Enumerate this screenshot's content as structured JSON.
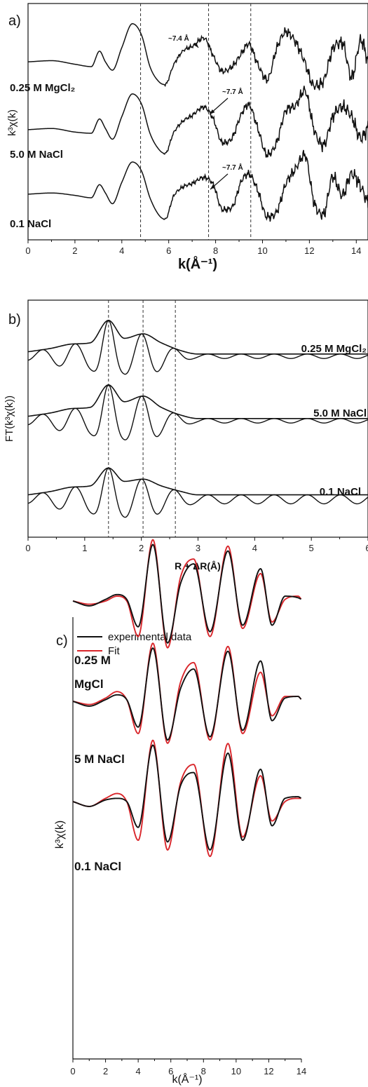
{
  "panels": {
    "a": {
      "letter": "a)"
    },
    "b": {
      "letter": "b)"
    },
    "c": {
      "letter": "c)"
    }
  },
  "chart_data": [
    {
      "panel": "a",
      "type": "line",
      "xlabel": "k(Å⁻¹)",
      "ylabel": "k³χ(k)",
      "xlim": [
        0,
        14.5
      ],
      "xticks": [
        0,
        2,
        4,
        6,
        8,
        10,
        12,
        14
      ],
      "vlines": [
        4.8,
        7.7,
        9.5
      ],
      "series": [
        {
          "name": "0.25 M MgCl₂",
          "x": [
            0,
            1.0,
            2.0,
            2.7,
            3.05,
            3.3,
            3.6,
            4.0,
            4.45,
            4.85,
            5.2,
            5.6,
            5.85,
            6.2,
            6.6,
            7.0,
            7.5,
            7.9,
            8.3,
            8.7,
            9.1,
            9.4,
            9.8,
            10.2,
            10.6,
            11.0,
            11.4,
            11.8,
            12.2,
            12.6,
            13.0,
            13.4,
            13.8,
            14.2,
            14.5
          ],
          "values": [
            0.4,
            0.5,
            0.2,
            0.0,
            1.3,
            0.4,
            -0.3,
            1.6,
            3.6,
            2.6,
            0.0,
            -1.3,
            -1.5,
            0.1,
            1.3,
            1.7,
            2.4,
            0.9,
            -0.4,
            0.0,
            1.1,
            1.9,
            0.2,
            -1.1,
            1.5,
            2.9,
            2.1,
            0.4,
            -1.6,
            -1.2,
            1.5,
            2.0,
            -0.9,
            2.2,
            0.4
          ]
        },
        {
          "name": "5.0 M NaCl",
          "x": [
            0,
            1.0,
            2.0,
            2.7,
            3.05,
            3.3,
            3.6,
            4.0,
            4.45,
            4.85,
            5.2,
            5.6,
            5.85,
            6.2,
            6.6,
            7.0,
            7.5,
            7.9,
            8.3,
            8.7,
            9.1,
            9.4,
            9.8,
            10.2,
            10.6,
            11.0,
            11.4,
            11.8,
            12.2,
            12.6,
            13.0,
            13.4,
            13.8,
            14.2,
            14.5
          ],
          "values": [
            0.3,
            0.4,
            0.1,
            0.0,
            1.2,
            0.4,
            -0.5,
            1.4,
            3.3,
            2.4,
            0.0,
            -1.4,
            -1.7,
            0.0,
            1.0,
            1.5,
            2.2,
            1.2,
            -0.8,
            -0.4,
            1.6,
            2.4,
            0.4,
            -1.8,
            -0.8,
            1.9,
            2.3,
            3.6,
            0.3,
            -1.0,
            1.4,
            2.2,
            1.4,
            -0.4,
            0.5
          ]
        },
        {
          "name": "0.1 NaCl",
          "x": [
            0,
            1.0,
            2.0,
            2.7,
            3.05,
            3.3,
            3.6,
            4.0,
            4.45,
            4.85,
            5.2,
            5.6,
            5.85,
            6.2,
            6.6,
            7.0,
            7.5,
            7.9,
            8.3,
            8.7,
            9.1,
            9.4,
            9.8,
            10.2,
            10.6,
            11.0,
            11.4,
            11.8,
            12.2,
            12.6,
            13.0,
            13.4,
            13.8,
            14.2,
            14.5
          ],
          "values": [
            0.3,
            0.4,
            0.2,
            0.0,
            1.1,
            0.4,
            -0.5,
            1.3,
            3.0,
            2.2,
            0.0,
            -1.5,
            -1.8,
            0.1,
            0.9,
            1.2,
            1.7,
            1.1,
            -1.0,
            -0.8,
            1.4,
            2.0,
            0.6,
            -1.6,
            -1.2,
            1.2,
            2.4,
            3.6,
            -0.4,
            -1.4,
            1.8,
            0.2,
            2.0,
            0.9,
            -0.5
          ]
        }
      ],
      "annotations": [
        "~7.4 Å",
        "~7.7 Å",
        "~7.7 Å"
      ]
    },
    {
      "panel": "b",
      "type": "line",
      "xlabel": "R + ΔR(Å)",
      "ylabel": "FT(k³χ(k))",
      "xlim": [
        0,
        6
      ],
      "xticks": [
        0,
        1,
        2,
        3,
        4,
        5,
        6
      ],
      "vlines": [
        1.42,
        2.03,
        2.6
      ],
      "series": [
        {
          "name": "0.25 M MgCl₂",
          "magnitude": {
            "x": [
              0,
              0.4,
              0.8,
              1.1,
              1.42,
              1.7,
              2.03,
              2.35,
              2.7,
              3.0,
              4.0,
              5.0,
              6.0
            ],
            "values": [
              0.2,
              0.35,
              0.55,
              0.6,
              1.6,
              0.8,
              1.0,
              0.6,
              0.25,
              0.1,
              0.1,
              0.1,
              0.1
            ]
          },
          "imag_min_x": [
            0.86,
            1.42,
            2.03,
            2.6
          ],
          "imag_min_values": [
            -0.7,
            -1.6,
            -1.0,
            -0.4
          ]
        },
        {
          "name": "5.0 M NaCl",
          "magnitude": {
            "x": [
              0,
              0.4,
              0.8,
              1.1,
              1.42,
              1.7,
              2.03,
              2.35,
              2.7,
              3.0,
              4.0,
              5.0,
              6.0
            ],
            "values": [
              0.2,
              0.35,
              0.55,
              0.6,
              1.6,
              0.85,
              1.1,
              0.6,
              0.25,
              0.1,
              0.1,
              0.1,
              0.1
            ]
          },
          "imag_min_x": [
            0.86,
            1.42,
            2.03,
            2.6
          ],
          "imag_min_values": [
            -0.7,
            -1.6,
            -1.1,
            -0.4
          ]
        },
        {
          "name": "0.1 NaCl",
          "magnitude": {
            "x": [
              0,
              0.4,
              0.8,
              1.1,
              1.42,
              1.7,
              2.03,
              2.35,
              2.7,
              3.0,
              4.0,
              5.0,
              6.0
            ],
            "values": [
              0.2,
              0.35,
              0.55,
              0.6,
              1.4,
              0.8,
              0.9,
              0.6,
              0.35,
              0.2,
              0.2,
              0.2,
              0.2
            ]
          },
          "imag_min_x": [
            0.86,
            1.42,
            2.03,
            2.6
          ],
          "imag_min_values": [
            -0.7,
            -1.5,
            -1.0,
            -0.6
          ]
        }
      ]
    },
    {
      "panel": "c",
      "type": "line",
      "xlabel": "k(Å⁻¹)",
      "ylabel": "k³χ(k)",
      "xlim": [
        0,
        14
      ],
      "xticks": [
        0,
        2,
        4,
        6,
        8,
        10,
        12,
        14
      ],
      "legend": {
        "placement": "top-left",
        "entries": [
          {
            "name": "experimental data",
            "color": "#111111"
          },
          {
            "name": "Fit",
            "color": "#d9262b"
          }
        ]
      },
      "series": [
        {
          "name": "0.25 M MgCl",
          "label_lines": [
            "0.25 M",
            "MgCl"
          ],
          "x": [
            0,
            1.0,
            2.0,
            2.7,
            3.3,
            4.0,
            4.9,
            5.8,
            6.6,
            7.4,
            8.4,
            9.5,
            10.4,
            11.5,
            12.2,
            13.0,
            13.8,
            14.0
          ],
          "experimental": [
            0.0,
            -0.3,
            0.1,
            0.4,
            0.1,
            -1.6,
            3.5,
            -2.6,
            1.1,
            2.3,
            -1.9,
            3.1,
            -1.5,
            2.0,
            -1.5,
            0.3,
            0.2,
            0.1
          ],
          "fit": [
            0.0,
            -0.2,
            0.0,
            0.3,
            0.0,
            -2.2,
            3.8,
            -2.9,
            1.5,
            2.6,
            -2.2,
            3.4,
            -1.7,
            1.7,
            -1.3,
            0.1,
            0.3,
            0.1
          ]
        },
        {
          "name": "5 M NaCl",
          "label_lines": [
            "5 M NaCl"
          ],
          "x": [
            0,
            1.0,
            2.0,
            2.7,
            3.3,
            4.0,
            4.9,
            5.8,
            6.6,
            7.4,
            8.4,
            9.5,
            10.4,
            11.5,
            12.2,
            13.0,
            13.8,
            14.0
          ],
          "experimental": [
            0.0,
            -0.3,
            0.1,
            0.4,
            0.1,
            -1.6,
            3.3,
            -2.4,
            0.8,
            2.0,
            -2.2,
            3.1,
            -1.8,
            2.5,
            -1.2,
            0.2,
            0.3,
            0.1
          ],
          "fit": [
            0.0,
            -0.2,
            0.2,
            0.6,
            0.1,
            -2.0,
            3.6,
            -2.6,
            1.2,
            2.4,
            -2.4,
            3.4,
            -2.0,
            1.8,
            -0.9,
            0.3,
            0.3,
            0.1
          ]
        },
        {
          "name": "0.1 NaCl",
          "label_lines": [
            "0.1 NaCl"
          ],
          "x": [
            0,
            1.0,
            2.0,
            2.7,
            3.3,
            4.0,
            4.9,
            5.8,
            6.6,
            7.4,
            8.4,
            9.5,
            10.4,
            11.5,
            12.2,
            13.0,
            13.8,
            14.0
          ],
          "experimental": [
            0.0,
            -0.3,
            0.1,
            0.2,
            0.0,
            -1.6,
            3.5,
            -2.5,
            1.0,
            1.8,
            -3.0,
            3.0,
            -2.4,
            2.0,
            -1.5,
            0.2,
            0.3,
            0.2
          ],
          "fit": [
            0.0,
            -0.3,
            0.2,
            0.5,
            0.0,
            -2.4,
            3.8,
            -3.0,
            1.2,
            2.3,
            -3.4,
            3.6,
            -2.2,
            1.6,
            -1.2,
            0.0,
            0.2,
            0.2
          ]
        }
      ]
    }
  ]
}
